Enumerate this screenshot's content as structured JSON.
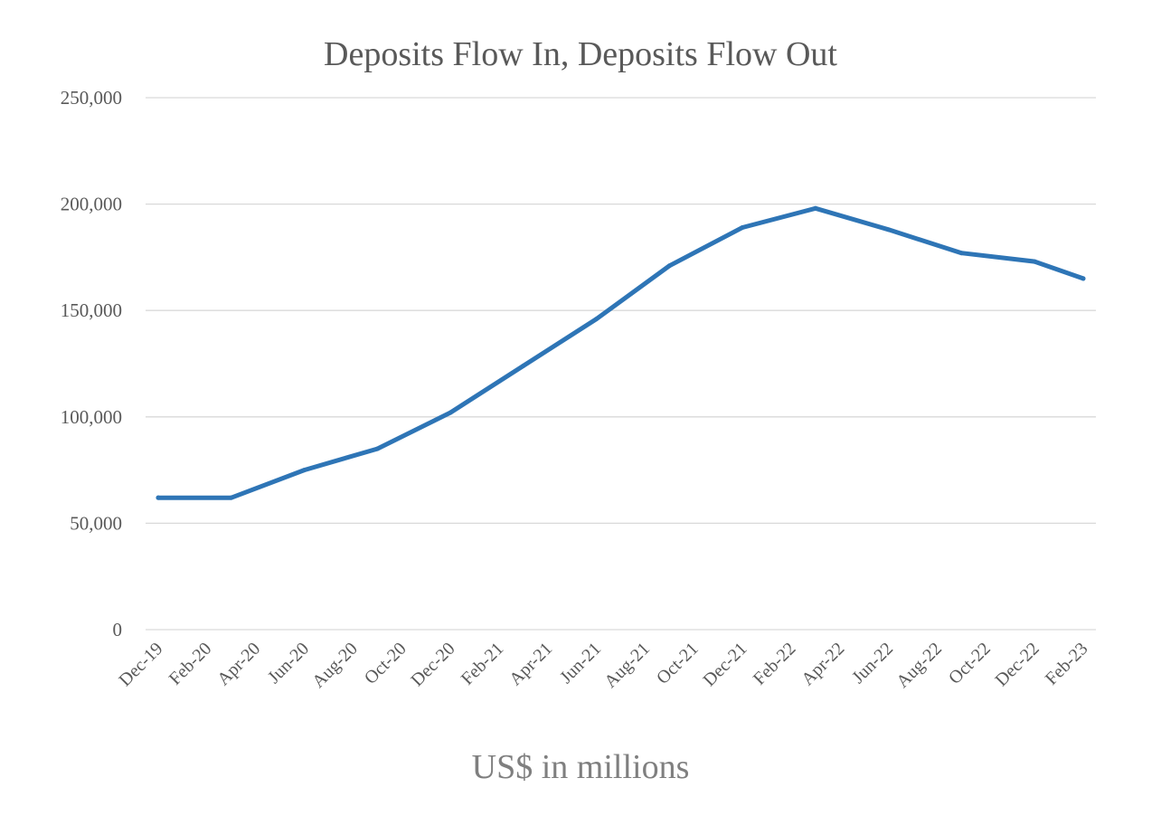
{
  "chart_data": {
    "type": "line",
    "title": "Deposits Flow In, Deposits Flow Out",
    "caption": "US$ in millions",
    "xlabel": "",
    "ylabel": "",
    "ylim": [
      0,
      250000
    ],
    "y_ticks": [
      0,
      50000,
      100000,
      150000,
      200000,
      250000
    ],
    "y_tick_labels": [
      "0",
      "50,000",
      "100,000",
      "150,000",
      "200,000",
      "250,000"
    ],
    "grid": true,
    "legend": "none",
    "x_tick_labels": [
      "Dec-19",
      "Feb-20",
      "Apr-20",
      "Jun-20",
      "Aug-20",
      "Oct-20",
      "Dec-20",
      "Feb-21",
      "Apr-21",
      "Jun-21",
      "Aug-21",
      "Oct-21",
      "Dec-21",
      "Feb-22",
      "Apr-22",
      "Jun-22",
      "Aug-22",
      "Oct-22",
      "Dec-22",
      "Feb-23"
    ],
    "series": [
      {
        "color": "#2e75b6",
        "points": [
          {
            "x": "Dec-19",
            "y": 62000
          },
          {
            "x": "Mar-20",
            "y": 62000
          },
          {
            "x": "Jun-20",
            "y": 75000
          },
          {
            "x": "Sep-20",
            "y": 85000
          },
          {
            "x": "Dec-20",
            "y": 102000
          },
          {
            "x": "Mar-21",
            "y": 124000
          },
          {
            "x": "Jun-21",
            "y": 146000
          },
          {
            "x": "Sep-21",
            "y": 171000
          },
          {
            "x": "Dec-21",
            "y": 189000
          },
          {
            "x": "Mar-22",
            "y": 198000
          },
          {
            "x": "Jun-22",
            "y": 188000
          },
          {
            "x": "Sep-22",
            "y": 177000
          },
          {
            "x": "Dec-22",
            "y": 173000
          },
          {
            "x": "Feb-23",
            "y": 165000
          }
        ]
      }
    ]
  }
}
